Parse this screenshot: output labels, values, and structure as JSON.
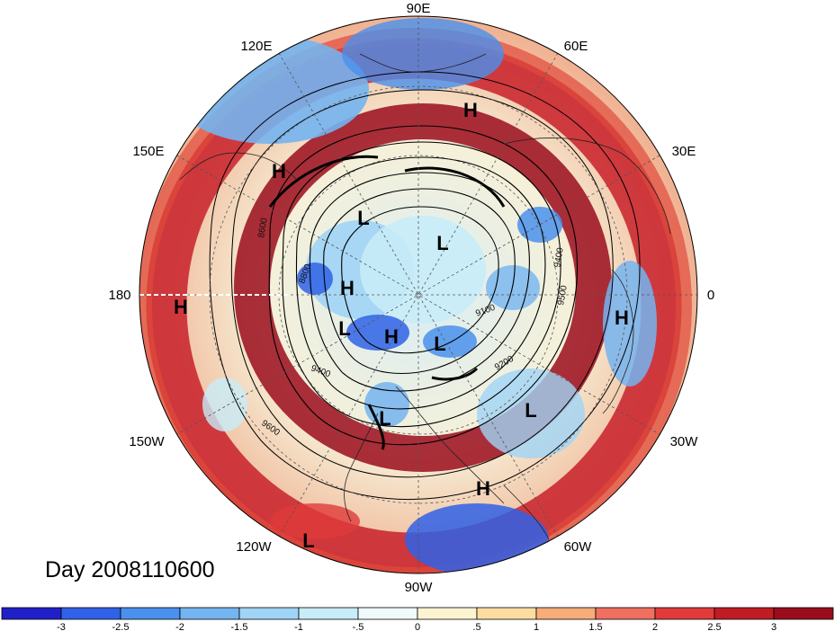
{
  "title": "Day 2008110600",
  "longitude_labels": [
    "90E",
    "60E",
    "30E",
    "0",
    "30W",
    "60W",
    "90W",
    "120W",
    "150W",
    "180",
    "150E",
    "120E"
  ],
  "pressure_systems": [
    {
      "label": "H",
      "name": "high-1"
    },
    {
      "label": "H",
      "name": "high-2"
    },
    {
      "label": "L",
      "name": "low-1"
    },
    {
      "label": "L",
      "name": "low-2"
    },
    {
      "label": "H",
      "name": "high-3"
    },
    {
      "label": "H",
      "name": "high-4"
    },
    {
      "label": "L",
      "name": "low-3"
    },
    {
      "label": "H",
      "name": "high-5"
    },
    {
      "label": "L",
      "name": "low-4"
    },
    {
      "label": "H",
      "name": "high-6"
    },
    {
      "label": "L",
      "name": "low-5"
    },
    {
      "label": "L",
      "name": "low-6"
    },
    {
      "label": "H",
      "name": "high-7"
    },
    {
      "label": "L",
      "name": "low-7"
    }
  ],
  "contour_labels": [
    "8800",
    "9100",
    "9200",
    "9400",
    "9600",
    "8600",
    "9500",
    "9400"
  ],
  "colorbar": {
    "ticks": [
      "-3",
      "-2.5",
      "-2",
      "-1.5",
      "-1",
      "-.5",
      "0",
      ".5",
      "1",
      "1.5",
      "2",
      "2.5",
      "3"
    ],
    "colors": [
      "#2020c8",
      "#2f62e6",
      "#4a90ec",
      "#74b4f0",
      "#a0d4f6",
      "#c8ecf8",
      "#f0fafa",
      "#fcf4d0",
      "#fcdca0",
      "#f8ac78",
      "#f07060",
      "#e03a3a",
      "#c01c24",
      "#9a0c1c"
    ]
  }
}
